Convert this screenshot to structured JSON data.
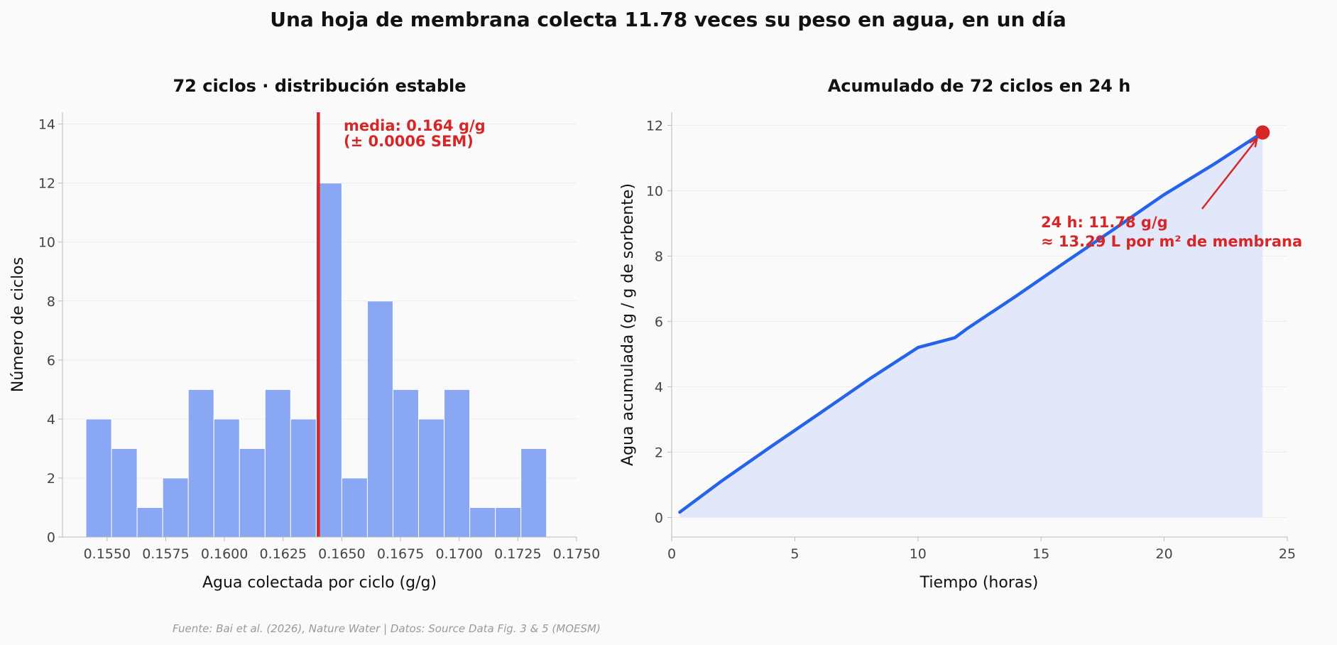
{
  "suptitle": "Una hoja de membrana colecta 11.78 veces su peso en agua, en un día",
  "source": "Fuente: Bai et al. (2026), Nature Water | Datos: Source Data Fig. 3 & 5 (MOESM)",
  "colors": {
    "bar": "#89a7f2",
    "mean_line": "#d62728",
    "line": "#2563eb",
    "fill": "#e0e7fa",
    "marker": "#d62728"
  },
  "chart_data": [
    {
      "type": "bar",
      "subtype": "histogram",
      "title": "72 ciclos · distribución estable",
      "xlabel": "Agua colectada por ciclo (g/g)",
      "ylabel": "Número de ciclos",
      "xlim": [
        0.1531,
        0.175
      ],
      "ylim": [
        0,
        14.4
      ],
      "xticks": [
        "0.1550",
        "0.1575",
        "0.1600",
        "0.1625",
        "0.1650",
        "0.1675",
        "0.1700",
        "0.1725",
        "0.1750"
      ],
      "xtick_values": [
        0.155,
        0.1575,
        0.16,
        0.1625,
        0.165,
        0.1675,
        0.17,
        0.1725,
        0.175
      ],
      "yticks": [
        0,
        2,
        4,
        6,
        8,
        10,
        12,
        14
      ],
      "bin_start": 0.1541,
      "bin_width": 0.00109,
      "values": [
        4,
        3,
        1,
        2,
        5,
        4,
        3,
        5,
        4,
        12,
        2,
        8,
        5,
        4,
        5,
        1,
        1,
        3
      ],
      "mean": 0.164,
      "annotation": [
        "media: 0.164 g/g",
        "(± 0.0006 SEM)"
      ],
      "grid": "y"
    },
    {
      "type": "area",
      "title": "Acumulado de 72 ciclos en 24 h",
      "xlabel": "Tiempo (horas)",
      "ylabel": "Agua acumulada (g / g de sorbente)",
      "xlim": [
        0,
        25
      ],
      "ylim": [
        -0.6,
        12.4
      ],
      "xticks": [
        0,
        5,
        10,
        15,
        20,
        25
      ],
      "yticks": [
        0,
        2,
        4,
        6,
        8,
        10,
        12
      ],
      "series": [
        {
          "x": [
            0.33,
            2,
            4,
            6,
            8,
            10,
            11.5,
            12,
            14,
            16,
            18,
            20,
            22,
            24
          ],
          "y": [
            0.16,
            1.1,
            2.15,
            3.18,
            4.22,
            5.2,
            5.5,
            5.78,
            6.78,
            7.82,
            8.84,
            9.88,
            10.8,
            11.78
          ]
        }
      ],
      "endpoint": {
        "x": 24,
        "y": 11.78
      },
      "annotation": [
        "24 h: 11.78 g/g",
        "≈ 13.29 L por m² de membrana"
      ],
      "grid": "y"
    }
  ]
}
